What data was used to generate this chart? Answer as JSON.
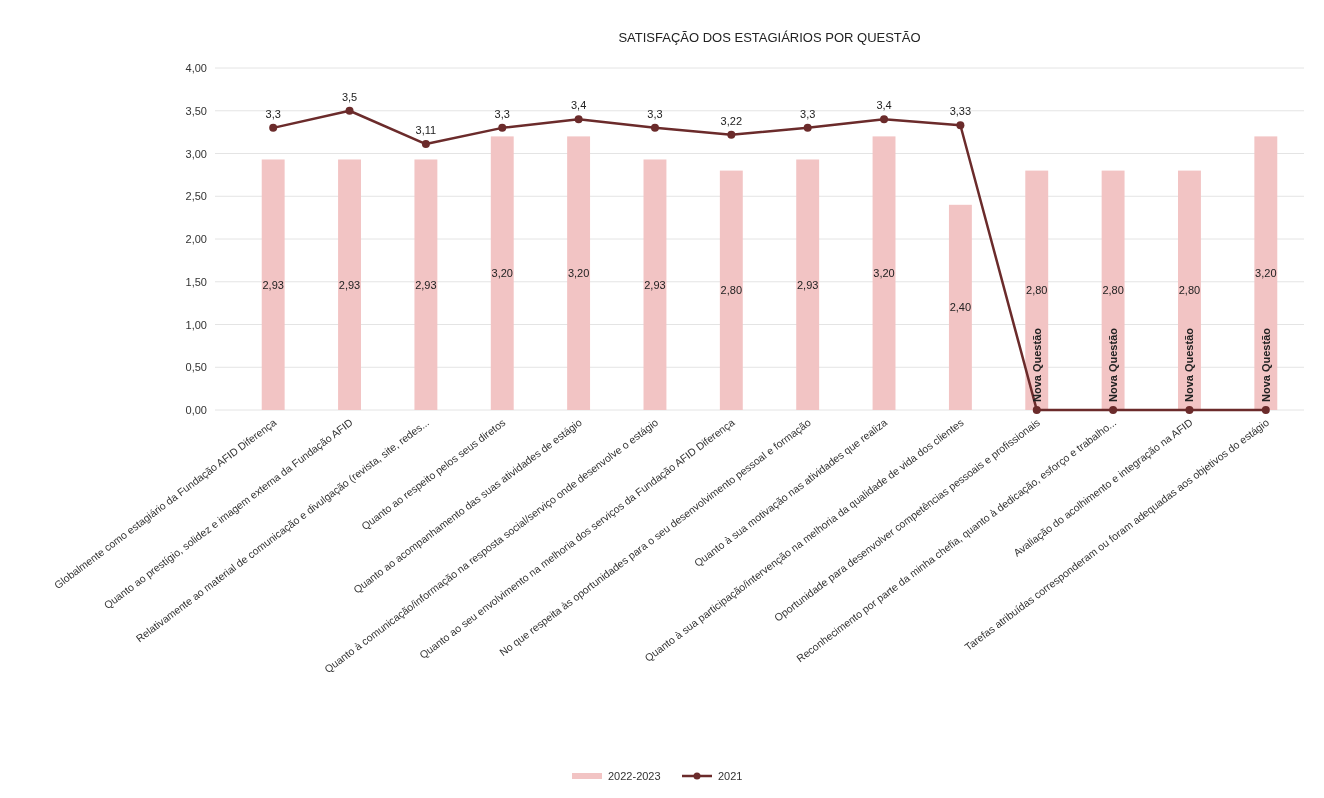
{
  "chart_data": {
    "type": "bar",
    "title": "SATISFAÇÃO DOS ESTAGIÁRIOS POR QUESTÃO",
    "categories": [
      "Globalmente como estagiário da Fundação AFID Diferença",
      "Quanto ao prestígio, solidez e imagem externa da Fundação AFID",
      "Relativamente ao material de comunicação e divulgação (revista, site, redes...",
      "Quanto ao respeito pelos seus diretos",
      "Quanto ao acompanhamento das suas atividades de estágio",
      "Quanto à comunicação/informação na resposta social/serviço onde desenvolve o estágio",
      "Quanto ao seu envolvimento na melhoria dos serviços da Fundação AFID Diferença",
      "No que respeita às oportunidades para o seu desenvolvimento pessoal e formação",
      "Quanto à sua motivação nas atividades que realiza",
      "Quanto à sua participação/intervenção na melhoria da qualidade de vida dos clientes",
      "Oportunidade para desenvolver competências pessoais e profissionais",
      "Reconhecimento por parte da minha chefia, quanto à dedicação, esforço e trabalho...",
      "Avaliação do acolhimento e integração na AFID",
      "Tarefas atribuídas corresponderam ou foram adequadas aos objetivos do estágio"
    ],
    "series": [
      {
        "name": "2022-2023",
        "color": "#f2c4c4",
        "values": [
          2.93,
          2.93,
          2.93,
          3.2,
          3.2,
          2.93,
          2.8,
          2.93,
          3.2,
          2.4,
          2.8,
          2.8,
          2.8,
          3.2
        ],
        "value_labels": [
          "2,93",
          "2,93",
          "2,93",
          "3,20",
          "3,20",
          "2,93",
          "2,80",
          "2,93",
          "3,20",
          "2,40",
          "2,80",
          "2,80",
          "2,80",
          "3,20"
        ]
      },
      {
        "name": "2021",
        "type": "line",
        "color": "#6b2b2b",
        "marker": "circle",
        "values": [
          3.3,
          3.5,
          3.11,
          3.3,
          3.4,
          3.3,
          3.22,
          3.3,
          3.4,
          3.33,
          0,
          0,
          0,
          0
        ],
        "value_labels": [
          "3,3",
          "3,5",
          "3,11",
          "3,3",
          "3,4",
          "3,3",
          "3,22",
          "3,3",
          "3,4",
          "3,33",
          "Nova Questão",
          "Nova Questão",
          "Nova Questão",
          "Nova Questão"
        ]
      }
    ],
    "ylim": [
      0,
      4
    ],
    "yticks": [
      {
        "value": 0,
        "label": "0,00"
      },
      {
        "value": 0.5,
        "label": "0,50"
      },
      {
        "value": 1,
        "label": "1,00"
      },
      {
        "value": 1.5,
        "label": "1,50"
      },
      {
        "value": 2,
        "label": "2,00"
      },
      {
        "value": 2.5,
        "label": "2,50"
      },
      {
        "value": 3,
        "label": "3,00"
      },
      {
        "value": 3.5,
        "label": "3,50"
      },
      {
        "value": 4,
        "label": "4,00"
      }
    ],
    "grid": "y",
    "legend": "bottom"
  }
}
